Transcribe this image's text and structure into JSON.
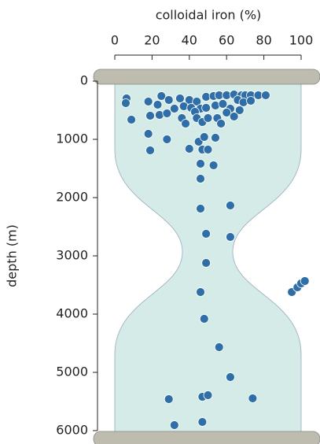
{
  "chart_data": {
    "type": "scatter",
    "x_label": "colloidal iron (%)",
    "y_label": "depth (m)",
    "xlim": [
      0,
      100
    ],
    "xticks": [
      0,
      20,
      40,
      60,
      80,
      100
    ],
    "ylim": [
      0,
      6000
    ],
    "yticks": [
      0,
      1000,
      2000,
      3000,
      4000,
      5000,
      6000
    ],
    "color": "#2f6ea6",
    "x": [
      6.3,
      5.9,
      8.9,
      18,
      23,
      25,
      29,
      35,
      40,
      44,
      49,
      53,
      56,
      60,
      64,
      68,
      70,
      73,
      77,
      81,
      66,
      69,
      73,
      19,
      24,
      28,
      32,
      37,
      41,
      46,
      49,
      54,
      58,
      62,
      67,
      36,
      38,
      43,
      44,
      47,
      50,
      55,
      57,
      60,
      64,
      18,
      28,
      19,
      40,
      45,
      48,
      47,
      50,
      54,
      46,
      53,
      46,
      46,
      62,
      49,
      62,
      49,
      46,
      48,
      56,
      62,
      47,
      50,
      29,
      74,
      47,
      32,
      95,
      98,
      100,
      102
    ],
    "values": [
      297,
      378,
      662,
      351,
      405,
      257,
      324,
      297,
      324,
      351,
      270,
      257,
      243,
      243,
      230,
      243,
      243,
      243,
      243,
      243,
      324,
      365,
      338,
      595,
      581,
      554,
      473,
      432,
      459,
      473,
      459,
      419,
      392,
      473,
      500,
      635,
      730,
      527,
      635,
      703,
      635,
      635,
      730,
      541,
      608,
      905,
      1000,
      1189,
      1162,
      1041,
      959,
      1176,
      1176,
      973,
      1419,
      1446,
      1676,
      2189,
      2135,
      2622,
      2676,
      3122,
      3622,
      4081,
      4568,
      5081,
      5419,
      5392,
      5459,
      5446,
      5851,
      5905,
      3622,
      3541,
      3473,
      3432
    ]
  }
}
